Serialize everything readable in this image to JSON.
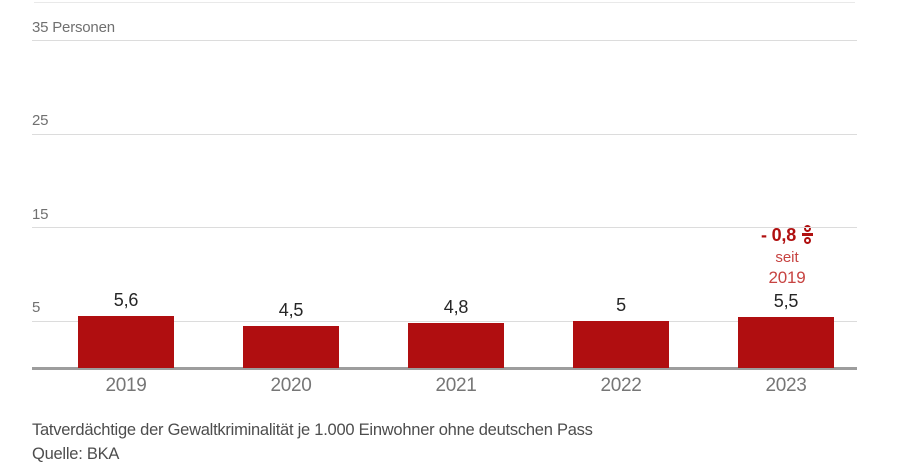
{
  "chart_data": {
    "type": "bar",
    "categories": [
      "2019",
      "2020",
      "2021",
      "2022",
      "2023"
    ],
    "values": [
      5.6,
      4.5,
      4.8,
      5.0,
      5.5
    ],
    "value_labels": [
      "5,6",
      "4,5",
      "4,8",
      "5",
      "5,5"
    ],
    "title": "",
    "xlabel": "",
    "ylabel": "Personen",
    "ylim": [
      0,
      40
    ],
    "yticks": [
      5,
      15,
      25,
      35
    ],
    "ytick_labels": [
      "5",
      "15",
      "25",
      "35 Personen"
    ],
    "grid": true,
    "legend": "none",
    "bar_color": "#b00e10",
    "annotation": {
      "value": "- 0,8",
      "symbol": "percent-vertical",
      "sub1": "seit",
      "sub2": "2019",
      "color_strong": "#b01010",
      "color_light": "#c74341",
      "anchor_category": "2023"
    }
  },
  "caption": {
    "line1": "Tatverdächtige der Gewaltkriminalität je 1.000 Einwohner ohne deutschen Pass",
    "source": "Quelle: BKA"
  },
  "colors": {
    "background": "#ffffff",
    "gridline": "#dcdcdc",
    "baseline": "#9d9d9d",
    "ytick_text": "#707070",
    "xtick_text": "#767676",
    "value_text": "#262626",
    "caption_text": "#4d4d4d"
  }
}
